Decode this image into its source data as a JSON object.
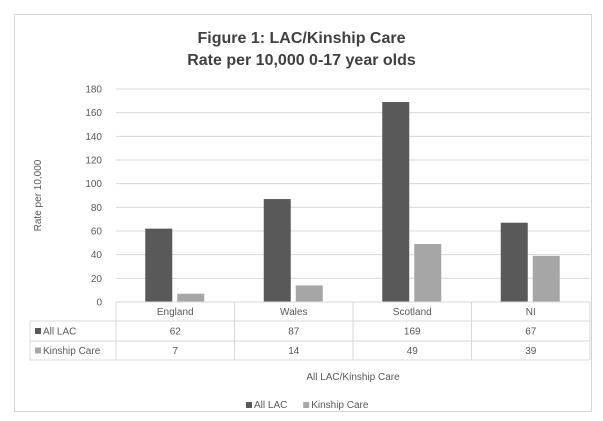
{
  "chart_data": {
    "type": "bar",
    "title": "Figure 1: LAC/Kinship Care",
    "subtitle": "Rate per 10,000 0-17 year olds",
    "ylabel": "Rate per 10,000",
    "xlabel": "All LAC/Kinship Care",
    "categories": [
      "England",
      "Wales",
      "Scotland",
      "NI"
    ],
    "ylim": [
      0,
      180
    ],
    "yticks": [
      0,
      20,
      40,
      60,
      80,
      100,
      120,
      140,
      160,
      180
    ],
    "grid": true,
    "legend_position": "bottom",
    "data_table": true,
    "series": [
      {
        "name": "All LAC",
        "values": [
          62,
          87,
          169,
          67
        ],
        "color": "#595959"
      },
      {
        "name": "Kinship Care",
        "values": [
          7,
          14,
          49,
          39
        ],
        "color": "#a6a6a6"
      }
    ]
  }
}
